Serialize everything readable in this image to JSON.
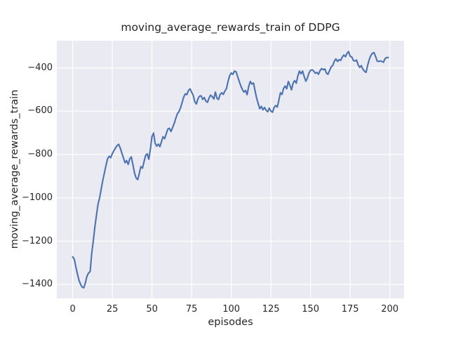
{
  "chart_data": {
    "type": "line",
    "title": "moving_average_rewards_train of DDPG",
    "xlabel": "episodes",
    "ylabel": "moving_average_rewards_train",
    "x_ticks": [
      0,
      25,
      50,
      75,
      100,
      125,
      150,
      175,
      200
    ],
    "x_tick_labels": [
      "0",
      "25",
      "50",
      "75",
      "100",
      "125",
      "150",
      "175",
      "200"
    ],
    "y_ticks": [
      -400,
      -600,
      -800,
      -1000,
      -1200,
      -1400
    ],
    "y_tick_labels": [
      "−400",
      "−600",
      "−800",
      "−1000",
      "−1200",
      "−1400"
    ],
    "xlim": [
      -10,
      209
    ],
    "ylim": [
      -1464,
      -275
    ],
    "grid": true,
    "legend": null,
    "colors": {
      "line": "#4c72b0",
      "axes_background": "#eaeaf2",
      "grid": "#ffffff",
      "text": "#262626",
      "figure_background": "#ffffff"
    },
    "x_start": 0,
    "x_step": 1,
    "series": [
      {
        "name": "DDPG moving average rewards (train)",
        "values": [
          -1272,
          -1283,
          -1318,
          -1352,
          -1380,
          -1400,
          -1412,
          -1415,
          -1392,
          -1362,
          -1347,
          -1340,
          -1258,
          -1198,
          -1135,
          -1080,
          -1028,
          -1000,
          -958,
          -920,
          -885,
          -850,
          -820,
          -808,
          -815,
          -796,
          -782,
          -770,
          -759,
          -753,
          -770,
          -794,
          -815,
          -838,
          -828,
          -846,
          -820,
          -811,
          -848,
          -886,
          -908,
          -916,
          -888,
          -856,
          -863,
          -833,
          -804,
          -797,
          -822,
          -775,
          -718,
          -701,
          -748,
          -762,
          -752,
          -764,
          -741,
          -718,
          -727,
          -704,
          -683,
          -679,
          -694,
          -676,
          -657,
          -634,
          -612,
          -603,
          -585,
          -560,
          -535,
          -520,
          -524,
          -505,
          -497,
          -512,
          -527,
          -556,
          -567,
          -543,
          -531,
          -529,
          -546,
          -537,
          -554,
          -559,
          -539,
          -526,
          -533,
          -544,
          -512,
          -541,
          -546,
          -523,
          -515,
          -523,
          -507,
          -496,
          -462,
          -436,
          -424,
          -430,
          -415,
          -418,
          -440,
          -462,
          -483,
          -500,
          -512,
          -504,
          -524,
          -486,
          -463,
          -475,
          -470,
          -505,
          -540,
          -566,
          -589,
          -578,
          -594,
          -583,
          -596,
          -603,
          -586,
          -600,
          -605,
          -583,
          -574,
          -581,
          -551,
          -515,
          -523,
          -495,
          -484,
          -497,
          -463,
          -481,
          -502,
          -470,
          -459,
          -471,
          -437,
          -415,
          -428,
          -415,
          -440,
          -462,
          -448,
          -424,
          -412,
          -409,
          -415,
          -425,
          -421,
          -430,
          -413,
          -403,
          -409,
          -405,
          -424,
          -430,
          -412,
          -396,
          -389,
          -370,
          -359,
          -371,
          -362,
          -366,
          -351,
          -341,
          -349,
          -334,
          -325,
          -347,
          -350,
          -366,
          -369,
          -364,
          -386,
          -398,
          -390,
          -406,
          -416,
          -421,
          -389,
          -362,
          -344,
          -333,
          -330,
          -347,
          -369,
          -371,
          -368,
          -371,
          -374,
          -357,
          -353,
          -352
        ]
      }
    ]
  }
}
